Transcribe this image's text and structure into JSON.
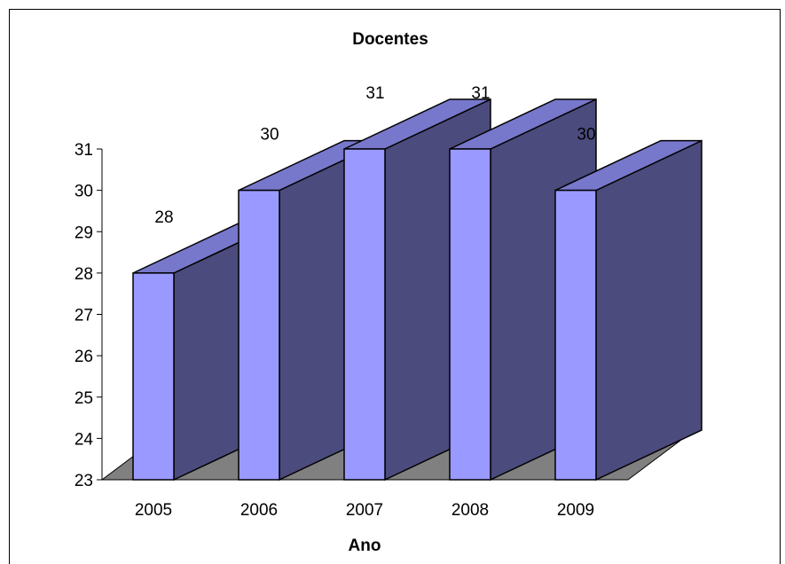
{
  "chart_data": {
    "type": "bar",
    "title": "Docentes",
    "xlabel": "Ano",
    "ylabel": "",
    "categories": [
      "2005",
      "2006",
      "2007",
      "2008",
      "2009"
    ],
    "values": [
      28,
      30,
      31,
      31,
      30
    ],
    "data_labels": [
      "28",
      "30",
      "31",
      "31",
      "30"
    ],
    "ylim": [
      23,
      31
    ],
    "yticks": [
      "23",
      "24",
      "25",
      "26",
      "27",
      "28",
      "29",
      "30",
      "31"
    ],
    "grid": false,
    "legend": "none",
    "three_d": true,
    "colors": {
      "bar_front": "#9999ff",
      "bar_top": "#7777cc",
      "bar_side": "#4b4b7d",
      "floor": "#808080",
      "outline": "#000000"
    }
  }
}
